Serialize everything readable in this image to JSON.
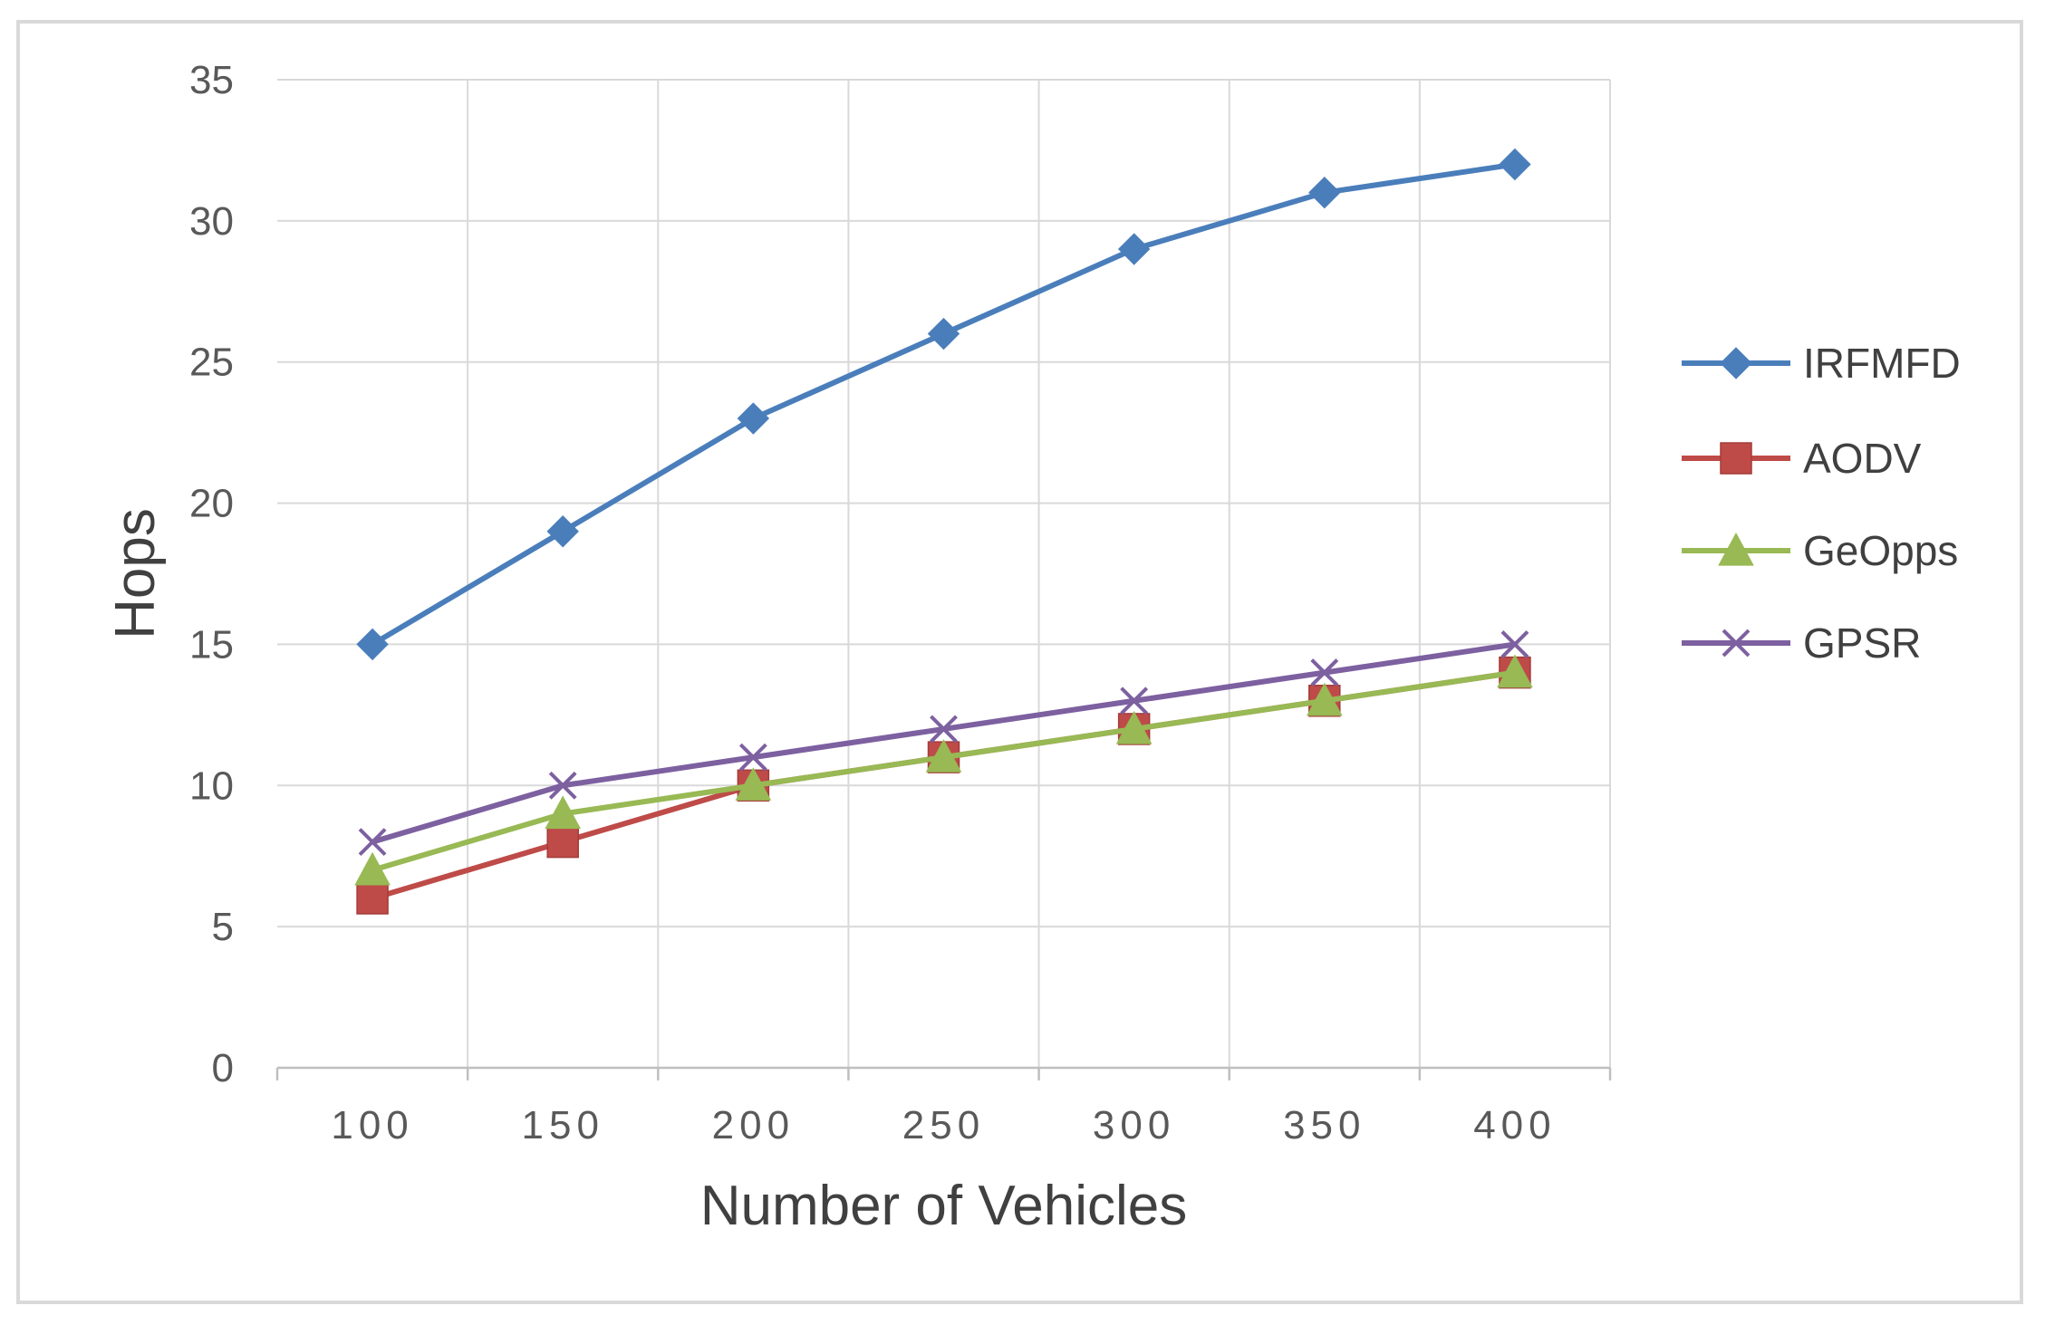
{
  "chart_data": {
    "type": "line",
    "title": "",
    "xlabel": "Number of Vehicles",
    "ylabel": "Hops",
    "categories": [
      "100",
      "150",
      "200",
      "250",
      "300",
      "350",
      "400"
    ],
    "ylim": [
      0,
      35
    ],
    "yticks": [
      0,
      5,
      10,
      15,
      20,
      25,
      30,
      35
    ],
    "grid": true,
    "legend_position": "right",
    "series": [
      {
        "name": "IRFMFD",
        "color": "#4a7ebb",
        "marker": "diamond",
        "values": [
          15,
          19,
          23,
          26,
          29,
          31,
          32
        ]
      },
      {
        "name": "AODV",
        "color": "#be4b48",
        "marker": "square",
        "values": [
          6,
          8,
          10,
          11,
          12,
          13,
          14
        ]
      },
      {
        "name": "GeOpps",
        "color": "#98b954",
        "marker": "triangle",
        "values": [
          7,
          9,
          10,
          11,
          12,
          13,
          14
        ]
      },
      {
        "name": "GPSR",
        "color": "#7d60a0",
        "marker": "x",
        "values": [
          8,
          10,
          11,
          12,
          13,
          14,
          15
        ]
      }
    ]
  }
}
